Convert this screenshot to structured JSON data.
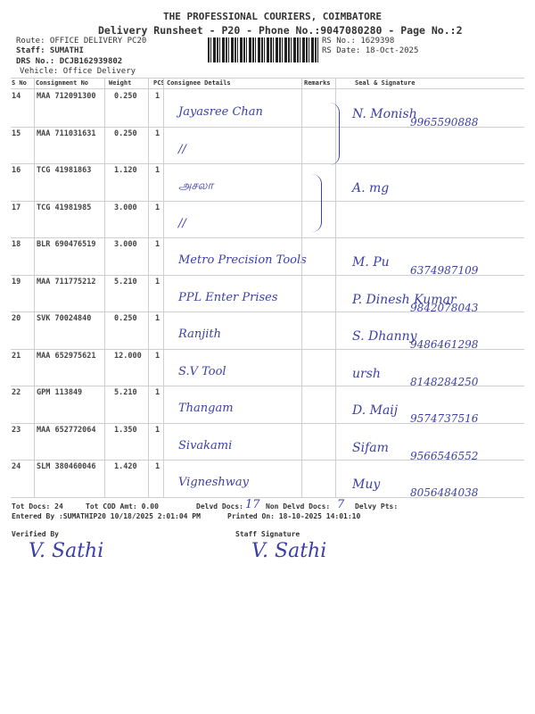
{
  "header": {
    "company": "THE PROFESSIONAL COURIERS, COIMBATORE",
    "subtitle": "Delivery Runsheet - P20 - Phone No.:9047080280 - Page No.:2",
    "route": "Route: OFFICE DELIVERY PC20",
    "staff": "Staff: SUMATHI",
    "drs": "DRS No.: DCJB162939802",
    "vehicle": "Vehicle: Office Delivery",
    "rs_no": "RS No.: 1629398",
    "rs_date": "RS Date: 18-Oct-2025"
  },
  "table": {
    "columns": [
      "S No",
      "Consignment No",
      "Weight",
      "PCS",
      "Consignee Details",
      "Remarks",
      "Seal & Signature"
    ],
    "rows": [
      {
        "sno": "14",
        "cons": "MAA 712091300",
        "weight": "0.250",
        "pcs": "1",
        "consignee": "Jayasree Chan",
        "seal": "N. Monish",
        "phone": "9965590888"
      },
      {
        "sno": "15",
        "cons": "MAA 711031631",
        "weight": "0.250",
        "pcs": "1",
        "consignee": "//",
        "seal": "",
        "phone": ""
      },
      {
        "sno": "16",
        "cons": "TCG 41981863",
        "weight": "1.120",
        "pcs": "1",
        "consignee": "அசலா",
        "seal": "A. mg",
        "phone": ""
      },
      {
        "sno": "17",
        "cons": "TCG 41981985",
        "weight": "3.000",
        "pcs": "1",
        "consignee": "//",
        "seal": "",
        "phone": ""
      },
      {
        "sno": "18",
        "cons": "BLR 690476519",
        "weight": "3.000",
        "pcs": "1",
        "consignee": "Metro Precision Tools",
        "seal": "M. Pu",
        "phone": "6374987109"
      },
      {
        "sno": "19",
        "cons": "MAA 711775212",
        "weight": "5.210",
        "pcs": "1",
        "consignee": "PPL Enter Prises",
        "seal": "P. Dinesh Kumar",
        "phone": "9842078043"
      },
      {
        "sno": "20",
        "cons": "SVK 70024840",
        "weight": "0.250",
        "pcs": "1",
        "consignee": "Ranjith",
        "seal": "S. Dhanny",
        "phone": "9486461298"
      },
      {
        "sno": "21",
        "cons": "MAA 652975621",
        "weight": "12.000",
        "pcs": "1",
        "consignee": "S.V Tool",
        "seal": "ursh",
        "phone": "8148284250"
      },
      {
        "sno": "22",
        "cons": "GPM 113849",
        "weight": "5.210",
        "pcs": "1",
        "consignee": "Thangam",
        "seal": "D. Maij",
        "phone": "9574737516"
      },
      {
        "sno": "23",
        "cons": "MAA 652772064",
        "weight": "1.350",
        "pcs": "1",
        "consignee": "Sivakami",
        "seal": "Sifam",
        "phone": "9566546552"
      },
      {
        "sno": "24",
        "cons": "SLM 380460046",
        "weight": "1.420",
        "pcs": "1",
        "consignee": "Vigneshway",
        "seal": "Muy",
        "phone": "8056484038"
      }
    ]
  },
  "footer": {
    "tot_docs": "Tot Docs:  24",
    "tot_cod": "Tot COD Amt:    0.00",
    "delvd_label": "Delvd Docs:",
    "delvd_value": "17",
    "non_delvd_label": "Non Delvd Docs:",
    "non_delvd_value": "7",
    "delvy_pts": "Delvy Pts:",
    "entered_by": "Entered By :SUMATHIP20 10/18/2025 2:01:04 PM",
    "printed_on": "Printed On: 18-10-2025 14:01:10",
    "verified_by": "Verified By",
    "staff_signature": "Staff Signature",
    "signature_text": "V. Sathi"
  },
  "colors": {
    "ink": "#3b3fa8",
    "print": "#333333"
  }
}
